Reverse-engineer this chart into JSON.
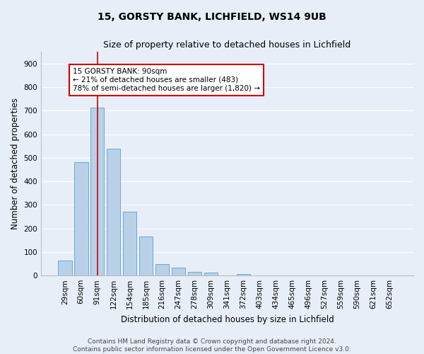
{
  "title1": "15, GORSTY BANK, LICHFIELD, WS14 9UB",
  "title2": "Size of property relative to detached houses in Lichfield",
  "xlabel": "Distribution of detached houses by size in Lichfield",
  "ylabel": "Number of detached properties",
  "footer1": "Contains HM Land Registry data © Crown copyright and database right 2024.",
  "footer2": "Contains public sector information licensed under the Open Government Licence v3.0.",
  "annotation_title": "15 GORSTY BANK: 90sqm",
  "annotation_line1": "← 21% of detached houses are smaller (483)",
  "annotation_line2": "78% of semi-detached houses are larger (1,820) →",
  "bar_color": "#b8d0e8",
  "bar_edge_color": "#6aaad4",
  "vline_color": "#cc0000",
  "annotation_border_color": "#cc0000",
  "categories": [
    "29sqm",
    "60sqm",
    "91sqm",
    "122sqm",
    "154sqm",
    "185sqm",
    "216sqm",
    "247sqm",
    "278sqm",
    "309sqm",
    "341sqm",
    "372sqm",
    "403sqm",
    "434sqm",
    "465sqm",
    "496sqm",
    "527sqm",
    "559sqm",
    "590sqm",
    "621sqm",
    "652sqm"
  ],
  "values": [
    65,
    480,
    712,
    537,
    272,
    165,
    48,
    35,
    17,
    13,
    0,
    8,
    0,
    0,
    0,
    0,
    0,
    0,
    0,
    0,
    0
  ],
  "vline_x": 2,
  "ylim": [
    0,
    950
  ],
  "yticks": [
    0,
    100,
    200,
    300,
    400,
    500,
    600,
    700,
    800,
    900
  ],
  "background_color": "#e8eef8",
  "plot_bg_color": "#e8eef8",
  "grid_color": "#ffffff",
  "title_fontsize": 10,
  "subtitle_fontsize": 9,
  "axis_label_fontsize": 8.5,
  "tick_fontsize": 7.5,
  "footer_fontsize": 6.5,
  "annotation_fontsize": 7.5
}
